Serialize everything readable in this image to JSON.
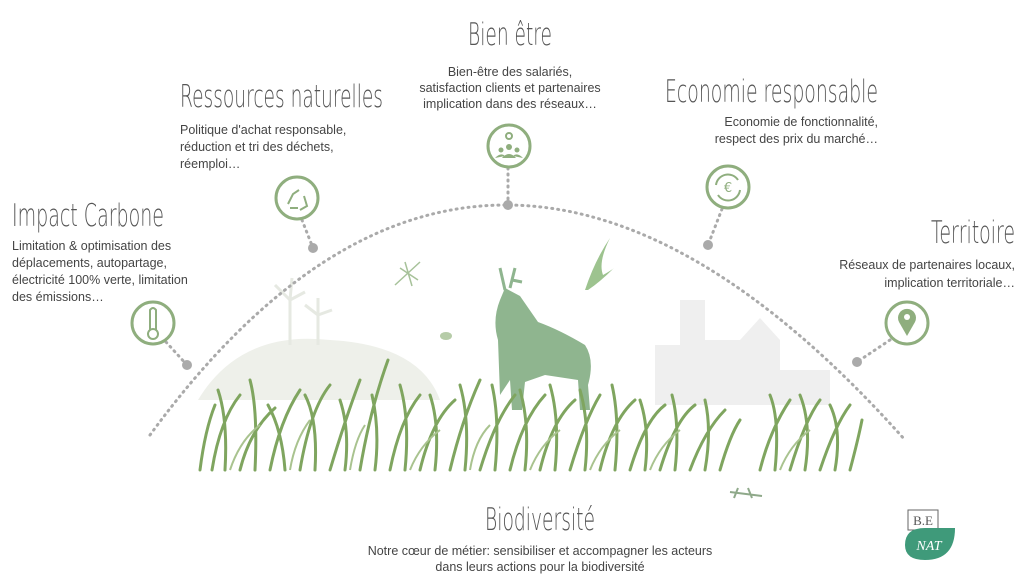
{
  "sections": [
    {
      "title": "Impact Carbone",
      "lines": [
        "Limitation & optimisation des",
        "déplacements, autopartage,",
        "électricité 100% verte, limitation",
        "des émissions…"
      ]
    },
    {
      "title": "Ressources naturelles",
      "lines": [
        "Politique d'achat responsable,",
        "réduction et tri des déchets,",
        "réemploi…"
      ]
    },
    {
      "title": "Bien être",
      "lines": [
        "Bien-être des salariés,",
        "satisfaction clients et partenaires",
        "implication dans des réseaux…"
      ]
    },
    {
      "title": "Economie responsable",
      "lines": [
        "Economie de fonctionnalité,",
        "respect des prix du marché…"
      ]
    },
    {
      "title": "Territoire",
      "lines": [
        "Réseaux de partenaires locaux,",
        "implication territoriale…"
      ]
    }
  ],
  "biodiversity": {
    "title": "Biodiversité",
    "lines": [
      "Notre cœur de métier: sensibiliser et accompagner les acteurs",
      "dans leurs actions pour la biodiversité"
    ]
  },
  "logo": {
    "top": "B.E",
    "bottom": "NAT"
  }
}
